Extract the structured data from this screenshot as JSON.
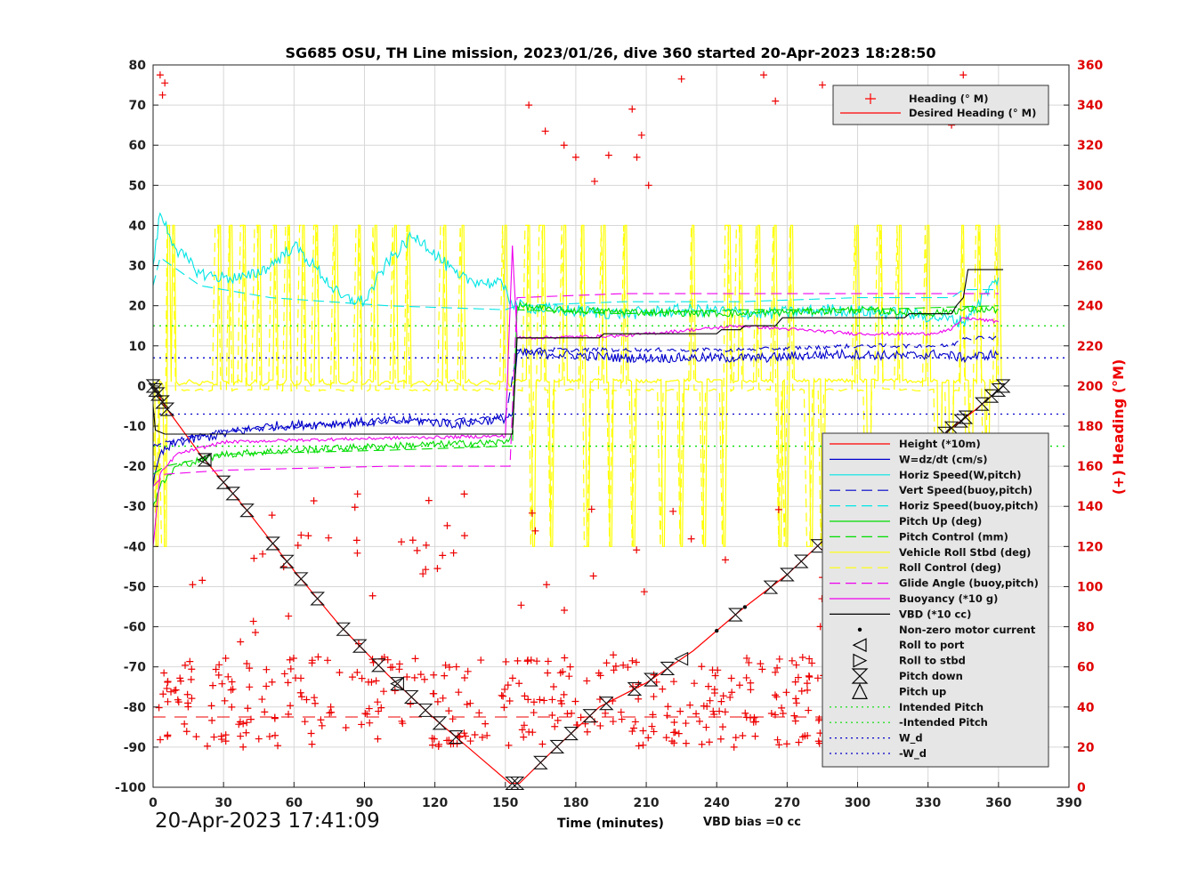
{
  "chart_data": {
    "type": "line",
    "title": "SG685 OSU, TH Line mission, 2023/01/26, dive 360 started 20-Apr-2023 18:28:50",
    "xlabel": "Time (minutes)",
    "ylabel": "",
    "y2label": "(+) Heading (°M)",
    "xlim": [
      0,
      390
    ],
    "ylim": [
      -100,
      80
    ],
    "y2lim": [
      0,
      360
    ],
    "xticks": [
      "0",
      "30",
      "60",
      "90",
      "120",
      "150",
      "180",
      "210",
      "240",
      "270",
      "300",
      "330",
      "360",
      "390"
    ],
    "yticks": [
      "80",
      "70",
      "60",
      "50",
      "40",
      "30",
      "20",
      "10",
      "0",
      "-10",
      "-20",
      "-30",
      "-40",
      "-50",
      "-60",
      "-70",
      "-80",
      "-90",
      "-100"
    ],
    "y2ticks": [
      "360",
      "340",
      "320",
      "300",
      "280",
      "260",
      "240",
      "220",
      "200",
      "180",
      "160",
      "140",
      "120",
      "100",
      "80",
      "60",
      "40",
      "20",
      "0"
    ],
    "grid": true,
    "legend_top": [
      {
        "label": "Heading (° M)",
        "color": "#ff0000",
        "style": "marker-plus"
      },
      {
        "label": "Desired Heading (° M)",
        "color": "#ff0000",
        "style": "solid"
      }
    ],
    "legend_bottom": [
      {
        "label": "Height (*10m)",
        "color": "#ff0000",
        "style": "solid"
      },
      {
        "label": "W=dz/dt (cm/s)",
        "color": "#0000cc",
        "style": "solid"
      },
      {
        "label": "Horiz Speed(W,pitch)",
        "color": "#00e5e5",
        "style": "solid"
      },
      {
        "label": "Vert Speed(buoy,pitch)",
        "color": "#0000cc",
        "style": "dashed"
      },
      {
        "label": "Horiz Speed(buoy,pitch)",
        "color": "#00e5e5",
        "style": "dashed"
      },
      {
        "label": "Pitch Up (deg)",
        "color": "#00dd00",
        "style": "solid"
      },
      {
        "label": "Pitch Control (mm)",
        "color": "#00dd00",
        "style": "dashed"
      },
      {
        "label": "Vehicle Roll Stbd (deg)",
        "color": "#ffff00",
        "style": "solid"
      },
      {
        "label": "Roll Control (deg)",
        "color": "#ffff00",
        "style": "dashed"
      },
      {
        "label": "Glide Angle (buoy,pitch)",
        "color": "#ee00ee",
        "style": "dashed"
      },
      {
        "label": "Buoyancy (*10 g)",
        "color": "#ee00ee",
        "style": "solid"
      },
      {
        "label": "VBD (*10 cc)",
        "color": "#000000",
        "style": "solid"
      },
      {
        "label": "Non-zero motor current",
        "color": "#000000",
        "style": "dot"
      },
      {
        "label": "Roll to port",
        "color": "#000000",
        "style": "tri-left"
      },
      {
        "label": "Roll to stbd",
        "color": "#000000",
        "style": "tri-right"
      },
      {
        "label": "Pitch down",
        "color": "#000000",
        "style": "hourglass"
      },
      {
        "label": "Pitch up",
        "color": "#000000",
        "style": "tri-up"
      },
      {
        "label": "Intended Pitch",
        "color": "#00dd00",
        "style": "dotted"
      },
      {
        "label": "-Intended Pitch",
        "color": "#00dd00",
        "style": "dotted"
      },
      {
        "label": "W_d",
        "color": "#0000cc",
        "style": "dotted"
      },
      {
        "label": "-W_d",
        "color": "#0000cc",
        "style": "dotted"
      }
    ],
    "series": [
      {
        "name": "Height (*10m)",
        "color": "#ff0000",
        "x": [
          0,
          5,
          20,
          40,
          60,
          80,
          100,
          120,
          140,
          152,
          156,
          170,
          190,
          210,
          230,
          250,
          270,
          290,
          310,
          330,
          350,
          362
        ],
        "y": [
          0,
          -5,
          -17,
          -31,
          -46,
          -60,
          -72,
          -83,
          -93,
          -99,
          -99,
          -91,
          -80,
          -74,
          -66,
          -56,
          -47,
          -36,
          -22,
          -15,
          -6,
          0
        ]
      },
      {
        "name": "W=dz/dt (cm/s)",
        "color": "#0000cc",
        "x": [
          0,
          3,
          10,
          30,
          50,
          70,
          90,
          110,
          130,
          150,
          153,
          155,
          170,
          200,
          230,
          260,
          290,
          320,
          335,
          345,
          360
        ],
        "y": [
          -25,
          -17,
          -14,
          -12,
          -10,
          -9.5,
          -9,
          -8.5,
          -9.5,
          -8,
          -7,
          8,
          8,
          7,
          7,
          7,
          8,
          7.5,
          8,
          7,
          8
        ]
      },
      {
        "name": "Horiz Speed(W,pitch)",
        "color": "#00e5e5",
        "x": [
          0,
          3,
          10,
          20,
          30,
          40,
          50,
          60,
          70,
          80,
          90,
          100,
          110,
          115,
          130,
          150,
          153,
          155,
          170,
          200,
          230,
          260,
          290,
          320,
          335,
          345,
          360
        ],
        "y": [
          30,
          43,
          34,
          28,
          27,
          27,
          30,
          35,
          29,
          22,
          21,
          31,
          37,
          36,
          27,
          25,
          20,
          20,
          19,
          18,
          19,
          18,
          19,
          18,
          17,
          16,
          27
        ]
      },
      {
        "name": "Vert Speed(buoy,pitch)",
        "color": "#0000cc",
        "x": [
          0,
          5,
          30,
          60,
          100,
          150,
          155,
          200,
          250,
          300,
          340,
          345,
          360
        ],
        "y": [
          -15,
          -14,
          -11,
          -10,
          -9,
          -8,
          9,
          9,
          9,
          10,
          10,
          12,
          12
        ]
      },
      {
        "name": "Horiz Speed(buoy,pitch)",
        "color": "#00e5e5",
        "x": [
          0,
          3,
          20,
          50,
          100,
          150,
          155,
          200,
          250,
          300,
          340,
          345,
          360
        ],
        "y": [
          25,
          32,
          25,
          22,
          20,
          19,
          20,
          21,
          21,
          22,
          22,
          24,
          24
        ]
      },
      {
        "name": "Pitch Up (deg)",
        "color": "#00dd00",
        "x": [
          0,
          3,
          10,
          30,
          60,
          100,
          150,
          153,
          155,
          170,
          200,
          250,
          300,
          330,
          345,
          360
        ],
        "y": [
          -30,
          -25,
          -20,
          -17,
          -16,
          -15,
          -14,
          -12,
          20,
          19,
          18.5,
          18,
          19,
          18,
          19,
          19
        ]
      },
      {
        "name": "Pitch Control (mm)",
        "color": "#00dd00",
        "x": [
          0,
          5,
          30,
          100,
          150,
          153,
          155,
          200,
          250,
          300,
          360
        ],
        "y": [
          -22,
          -20,
          -17,
          -16,
          -15,
          -15,
          19,
          18,
          19,
          19,
          20
        ]
      },
      {
        "name": "Buoyancy (*10 g)",
        "color": "#ee00ee",
        "x": [
          0,
          3,
          10,
          30,
          60,
          100,
          150,
          153,
          155,
          160,
          200,
          250,
          300,
          330,
          340,
          345,
          360
        ],
        "y": [
          -40,
          -22,
          -17,
          -14,
          -13.5,
          -13,
          -12.5,
          35,
          12,
          12,
          12.5,
          15,
          13,
          13,
          14,
          17,
          16
        ]
      },
      {
        "name": "Glide Angle (buoy,pitch)",
        "color": "#ee00ee",
        "x": [
          0,
          5,
          30,
          100,
          152,
          155,
          200,
          250,
          300,
          360
        ],
        "y": [
          -25,
          -22,
          -21,
          -20,
          -20,
          22,
          23,
          23,
          23,
          23
        ]
      },
      {
        "name": "VBD (*10 cc)",
        "color": "#000000",
        "x": [
          0,
          1,
          5,
          50,
          100,
          153,
          155,
          190,
          192,
          240,
          242,
          250,
          252,
          265,
          268,
          320,
          322,
          340,
          342,
          345,
          347,
          362
        ],
        "y": [
          -5,
          -11,
          -12,
          -12,
          -12,
          -12,
          12,
          12,
          13,
          13,
          14,
          14,
          15,
          15,
          17,
          17,
          18,
          18,
          20,
          22,
          29,
          29
        ]
      }
    ],
    "reference_lines": {
      "intended_pitch": 15,
      "neg_intended_pitch": -15,
      "w_d": 7,
      "neg_w_d": -7
    },
    "desired_heading_deg": 35,
    "pitch_markers_x": [
      0,
      1,
      2,
      4,
      6,
      22,
      30,
      34,
      40,
      51,
      57,
      63,
      70,
      81,
      88,
      96,
      104,
      110,
      116,
      122,
      129,
      153,
      155,
      165,
      172,
      178,
      186,
      193,
      205,
      212,
      219,
      248,
      263,
      270,
      276,
      283,
      289,
      299,
      305,
      311,
      318,
      327,
      337,
      340,
      344,
      346,
      353,
      357,
      360,
      362
    ],
    "roll_port_x": [
      22,
      104,
      225
    ],
    "motor_current_x": [
      240,
      252
    ],
    "heading_samples": [
      {
        "x": 3,
        "h": 355
      },
      {
        "x": 4,
        "h": 345
      },
      {
        "x": 5,
        "h": 351
      },
      {
        "x": 160,
        "h": 340
      },
      {
        "x": 167,
        "h": 327
      },
      {
        "x": 175,
        "h": 320
      },
      {
        "x": 180,
        "h": 314
      },
      {
        "x": 188,
        "h": 302
      },
      {
        "x": 194,
        "h": 315
      },
      {
        "x": 204,
        "h": 338
      },
      {
        "x": 206,
        "h": 314
      },
      {
        "x": 208,
        "h": 325
      },
      {
        "x": 211,
        "h": 300
      },
      {
        "x": 225,
        "h": 353
      },
      {
        "x": 260,
        "h": 355
      },
      {
        "x": 265,
        "h": 342
      },
      {
        "x": 285,
        "h": 350
      },
      {
        "x": 300,
        "h": 348
      },
      {
        "x": 320,
        "h": 345
      },
      {
        "x": 337,
        "h": 338
      },
      {
        "x": 340,
        "h": 330
      },
      {
        "x": 345,
        "h": 355
      },
      {
        "x": 350,
        "h": 342
      }
    ],
    "timestamp": "20-Apr-2023 17:41:09",
    "vbd_bias": "VBD bias =0 cc"
  }
}
